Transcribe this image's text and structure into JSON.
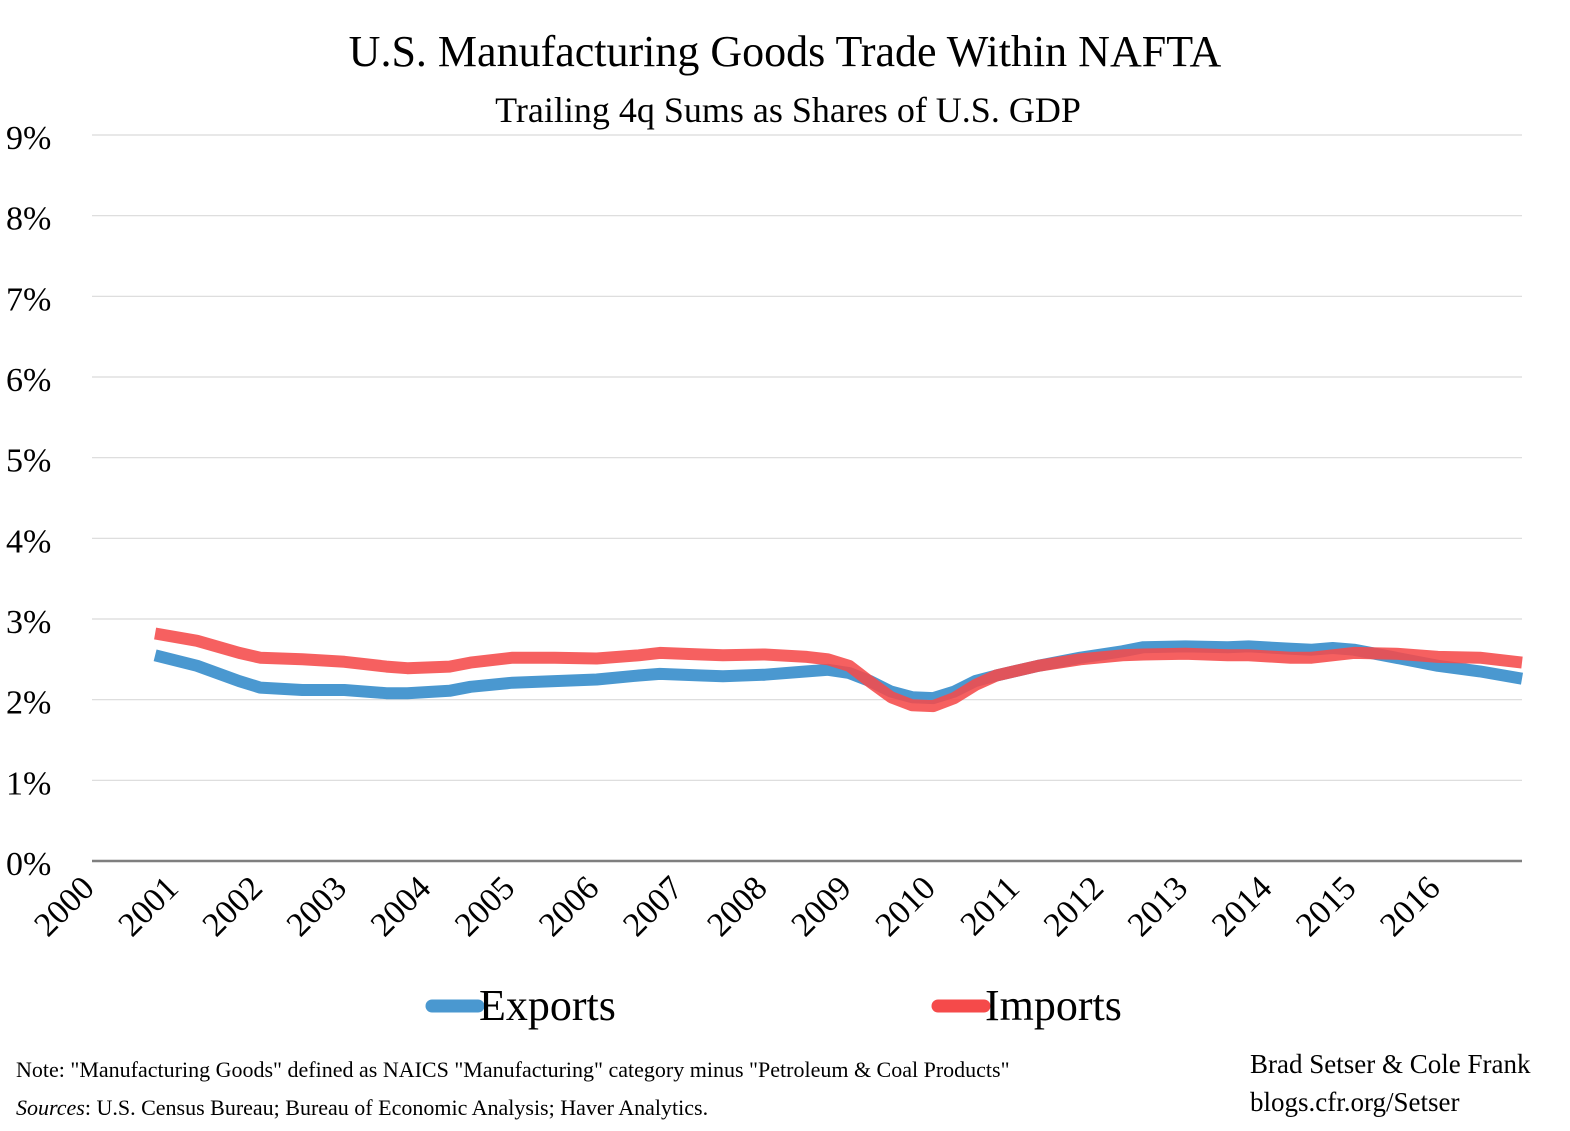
{
  "header": {
    "title": "U.S. Manufacturing Goods Trade Within NAFTA",
    "subtitle": "Trailing 4q Sums as Shares of U.S. GDP"
  },
  "footer": {
    "note": "Note: \"Manufacturing Goods\" defined as NAICS \"Manufacturing\" category minus \"Petroleum & Coal Products\"",
    "sources_label": "Sources",
    "sources_text": ": U.S. Census Bureau; Bureau of Economic Analysis; Haver Analytics.",
    "credit_line1": "Brad Setser & Cole Frank",
    "credit_line2": "blogs.cfr.org/Setser"
  },
  "colors": {
    "exports": "#4A98D0",
    "imports": "#F54A4A",
    "grid": "#d9d9d9",
    "axis": "#7f7f7f"
  },
  "chart_data": {
    "type": "line",
    "title": "U.S. Manufacturing Goods Trade Within NAFTA",
    "subtitle": "Trailing 4q Sums as Shares of U.S. GDP",
    "xlabel": "",
    "ylabel": "",
    "ylim": [
      0,
      9
    ],
    "xlim": [
      2000,
      2017
    ],
    "yticks": [
      "0%",
      "1%",
      "2%",
      "3%",
      "4%",
      "5%",
      "6%",
      "7%",
      "8%",
      "9%"
    ],
    "xticks": [
      "2000",
      "2001",
      "2002",
      "2003",
      "2004",
      "2005",
      "2006",
      "2007",
      "2008",
      "2009",
      "2010",
      "2011",
      "2012",
      "2013",
      "2014",
      "2015",
      "2016"
    ],
    "grid": true,
    "legend": "bottom",
    "series": [
      {
        "name": "Exports",
        "points": [
          [
            2000.75,
            2.55
          ],
          [
            2001.25,
            2.42
          ],
          [
            2001.75,
            2.23
          ],
          [
            2002.0,
            2.15
          ],
          [
            2002.5,
            2.12
          ],
          [
            2003.0,
            2.12
          ],
          [
            2003.5,
            2.08
          ],
          [
            2003.75,
            2.08
          ],
          [
            2004.25,
            2.11
          ],
          [
            2004.5,
            2.16
          ],
          [
            2005.0,
            2.21
          ],
          [
            2005.5,
            2.23
          ],
          [
            2006.0,
            2.25
          ],
          [
            2006.5,
            2.3
          ],
          [
            2006.75,
            2.32
          ],
          [
            2007.25,
            2.3
          ],
          [
            2007.5,
            2.29
          ],
          [
            2008.0,
            2.31
          ],
          [
            2008.5,
            2.35
          ],
          [
            2008.75,
            2.37
          ],
          [
            2009.0,
            2.33
          ],
          [
            2009.25,
            2.23
          ],
          [
            2009.5,
            2.1
          ],
          [
            2009.75,
            2.03
          ],
          [
            2010.0,
            2.02
          ],
          [
            2010.25,
            2.1
          ],
          [
            2010.5,
            2.23
          ],
          [
            2010.75,
            2.3
          ],
          [
            2011.25,
            2.42
          ],
          [
            2011.75,
            2.52
          ],
          [
            2012.25,
            2.6
          ],
          [
            2012.5,
            2.65
          ],
          [
            2013.0,
            2.66
          ],
          [
            2013.5,
            2.65
          ],
          [
            2013.75,
            2.66
          ],
          [
            2014.25,
            2.63
          ],
          [
            2014.5,
            2.62
          ],
          [
            2014.75,
            2.64
          ],
          [
            2015.0,
            2.62
          ],
          [
            2015.5,
            2.52
          ],
          [
            2016.0,
            2.42
          ],
          [
            2016.5,
            2.35
          ],
          [
            2017.0,
            2.26
          ]
        ]
      },
      {
        "name": "Imports",
        "points": [
          [
            2000.75,
            2.82
          ],
          [
            2001.25,
            2.73
          ],
          [
            2001.75,
            2.58
          ],
          [
            2002.0,
            2.52
          ],
          [
            2002.5,
            2.5
          ],
          [
            2003.0,
            2.47
          ],
          [
            2003.5,
            2.41
          ],
          [
            2003.75,
            2.39
          ],
          [
            2004.25,
            2.41
          ],
          [
            2004.5,
            2.46
          ],
          [
            2005.0,
            2.52
          ],
          [
            2005.5,
            2.52
          ],
          [
            2006.0,
            2.51
          ],
          [
            2006.5,
            2.55
          ],
          [
            2006.75,
            2.58
          ],
          [
            2007.25,
            2.56
          ],
          [
            2007.5,
            2.55
          ],
          [
            2008.0,
            2.56
          ],
          [
            2008.5,
            2.53
          ],
          [
            2008.75,
            2.5
          ],
          [
            2009.0,
            2.42
          ],
          [
            2009.25,
            2.22
          ],
          [
            2009.5,
            2.03
          ],
          [
            2009.75,
            1.93
          ],
          [
            2010.0,
            1.92
          ],
          [
            2010.25,
            2.02
          ],
          [
            2010.5,
            2.18
          ],
          [
            2010.75,
            2.3
          ],
          [
            2011.25,
            2.42
          ],
          [
            2011.75,
            2.5
          ],
          [
            2012.25,
            2.55
          ],
          [
            2012.5,
            2.56
          ],
          [
            2013.0,
            2.57
          ],
          [
            2013.5,
            2.55
          ],
          [
            2013.75,
            2.55
          ],
          [
            2014.25,
            2.52
          ],
          [
            2014.5,
            2.52
          ],
          [
            2014.75,
            2.55
          ],
          [
            2015.0,
            2.58
          ],
          [
            2015.5,
            2.57
          ],
          [
            2016.0,
            2.53
          ],
          [
            2016.5,
            2.52
          ],
          [
            2017.0,
            2.46
          ]
        ]
      }
    ]
  }
}
